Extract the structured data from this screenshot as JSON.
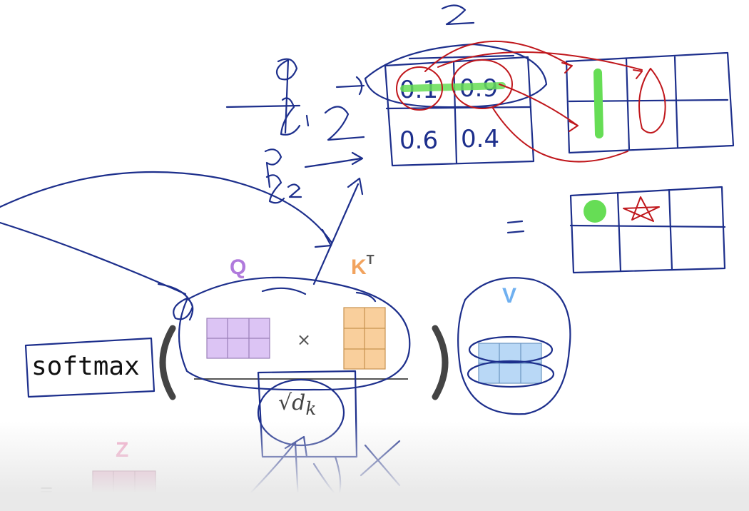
{
  "labels": {
    "softmax": "softmax",
    "q": "Q",
    "k": "K",
    "k_sup": "T",
    "v": "V",
    "z": "Z",
    "times": "×",
    "sqrt_dk": "√d",
    "sqrt_dk_sub": "k",
    "equals": "="
  },
  "handwriting": {
    "score_top_left": "0.1",
    "score_top_right": "0.9",
    "score_bottom_left": "0.6",
    "score_bottom_right": "0.4",
    "number_two": "2",
    "label_q1": "q",
    "label_k1": "k₁ 2",
    "label_q2": "q",
    "label_k2": "k₂",
    "equals": "="
  },
  "colors": {
    "ink_blue": "#1d2f8c",
    "ink_red": "#c0171c",
    "highlight_green": "#66dd55",
    "q_fill": "#dcc4f4",
    "k_fill": "#f9cf9c",
    "v_fill": "#b9d8f6",
    "z_fill": "#e5a3c3"
  }
}
